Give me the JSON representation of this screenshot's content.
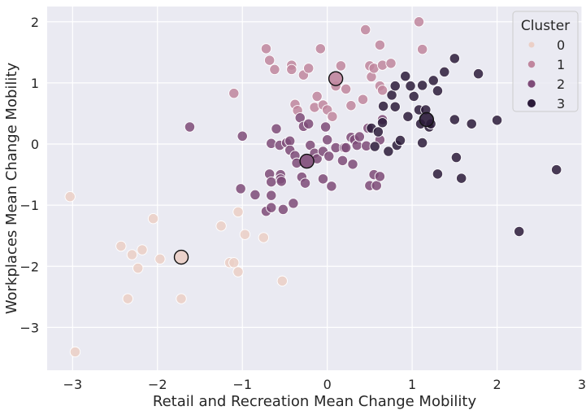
{
  "chart_data": {
    "type": "scatter",
    "xlabel": "Retail and Recreation Mean Change Mobility",
    "ylabel": "Workplaces Mean Change Mobility",
    "xlim": [
      -3.3,
      3.0
    ],
    "ylim": [
      -3.7,
      2.25
    ],
    "xticks": [
      -3,
      -2,
      -1,
      0,
      1,
      2,
      3
    ],
    "yticks": [
      -3,
      -2,
      -1,
      0,
      1,
      2
    ],
    "xtick_labels": [
      "−3",
      "−2",
      "−1",
      "0",
      "1",
      "2",
      "3"
    ],
    "ytick_labels": [
      "−3",
      "−2",
      "−1",
      "0",
      "1",
      "2"
    ],
    "grid": true,
    "legend": {
      "title": "Cluster",
      "placement": "top-right",
      "entries": [
        "0",
        "1",
        "2",
        "3"
      ]
    },
    "colors": {
      "0": "#ebcfc6",
      "1": "#c0869e",
      "2": "#7e4b78",
      "3": "#2b1b3a",
      "background": "#eaeaf2",
      "grid": "#ffffff"
    },
    "series": [
      {
        "name": "0",
        "points": [
          [
            -3.03,
            -0.86
          ],
          [
            -2.97,
            -3.4
          ],
          [
            -2.43,
            -1.67
          ],
          [
            -2.35,
            -2.53
          ],
          [
            -2.3,
            -1.81
          ],
          [
            -2.23,
            -2.03
          ],
          [
            -2.18,
            -1.73
          ],
          [
            -2.05,
            -1.22
          ],
          [
            -1.97,
            -1.88
          ],
          [
            -1.72,
            -2.53
          ],
          [
            -1.25,
            -1.34
          ],
          [
            -1.15,
            -1.94
          ],
          [
            -1.1,
            -1.94
          ],
          [
            -1.05,
            -2.09
          ],
          [
            -1.05,
            -1.11
          ],
          [
            -0.97,
            -1.48
          ],
          [
            -0.75,
            -1.53
          ],
          [
            -0.53,
            -2.24
          ]
        ]
      },
      {
        "name": "1",
        "points": [
          [
            -1.1,
            0.83
          ],
          [
            -0.72,
            1.56
          ],
          [
            -0.68,
            1.37
          ],
          [
            -0.62,
            1.22
          ],
          [
            -0.42,
            1.29
          ],
          [
            -0.42,
            1.22
          ],
          [
            -0.38,
            0.65
          ],
          [
            -0.35,
            0.55
          ],
          [
            -0.28,
            1.13
          ],
          [
            -0.22,
            1.24
          ],
          [
            -0.15,
            0.6
          ],
          [
            -0.12,
            0.78
          ],
          [
            -0.08,
            1.56
          ],
          [
            -0.05,
            0.64
          ],
          [
            0.0,
            0.56
          ],
          [
            0.06,
            0.45
          ],
          [
            0.1,
            0.95
          ],
          [
            0.16,
            1.28
          ],
          [
            0.22,
            0.9
          ],
          [
            0.28,
            0.63
          ],
          [
            0.42,
            0.73
          ],
          [
            0.45,
            1.87
          ],
          [
            0.5,
            1.28
          ],
          [
            0.52,
            1.1
          ],
          [
            0.55,
            1.24
          ],
          [
            0.62,
            1.62
          ],
          [
            0.62,
            0.95
          ],
          [
            0.65,
            0.88
          ],
          [
            0.65,
            1.29
          ],
          [
            0.75,
            1.32
          ],
          [
            1.08,
            2.0
          ],
          [
            1.12,
            1.55
          ]
        ]
      },
      {
        "name": "2",
        "points": [
          [
            -1.62,
            0.28
          ],
          [
            -1.0,
            0.13
          ],
          [
            -1.02,
            -0.73
          ],
          [
            -0.85,
            -0.83
          ],
          [
            -0.72,
            -1.1
          ],
          [
            -0.66,
            -1.04
          ],
          [
            -0.68,
            -0.49
          ],
          [
            -0.66,
            -0.62
          ],
          [
            -0.66,
            -0.84
          ],
          [
            -0.66,
            0.01
          ],
          [
            -0.6,
            0.25
          ],
          [
            -0.56,
            -0.02
          ],
          [
            -0.55,
            -0.5
          ],
          [
            -0.55,
            -0.57
          ],
          [
            -0.54,
            -0.61
          ],
          [
            -0.52,
            -1.07
          ],
          [
            -0.48,
            0.02
          ],
          [
            -0.44,
            0.05
          ],
          [
            -0.44,
            -0.1
          ],
          [
            -0.4,
            -0.97
          ],
          [
            -0.38,
            -0.19
          ],
          [
            -0.36,
            -0.31
          ],
          [
            -0.32,
            0.43
          ],
          [
            -0.3,
            -0.54
          ],
          [
            -0.28,
            0.29
          ],
          [
            -0.26,
            -0.64
          ],
          [
            -0.22,
            0.33
          ],
          [
            -0.2,
            -0.02
          ],
          [
            -0.15,
            -0.15
          ],
          [
            -0.12,
            -0.24
          ],
          [
            -0.05,
            -0.12
          ],
          [
            -0.05,
            -0.57
          ],
          [
            -0.02,
            0.28
          ],
          [
            0.0,
            0.07
          ],
          [
            0.02,
            -0.2
          ],
          [
            0.05,
            -0.69
          ],
          [
            0.1,
            -0.06
          ],
          [
            0.18,
            -0.27
          ],
          [
            0.2,
            -0.06
          ],
          [
            0.22,
            -0.06
          ],
          [
            0.28,
            0.11
          ],
          [
            0.3,
            -0.33
          ],
          [
            0.32,
            0.07
          ],
          [
            0.35,
            -0.02
          ],
          [
            0.38,
            0.12
          ],
          [
            0.46,
            -0.03
          ],
          [
            0.48,
            0.26
          ],
          [
            0.5,
            -0.68
          ],
          [
            0.55,
            -0.5
          ],
          [
            0.58,
            -0.68
          ],
          [
            0.62,
            -0.53
          ],
          [
            0.62,
            0.07
          ],
          [
            0.65,
            0.4
          ]
        ]
      },
      {
        "name": "3",
        "points": [
          [
            0.52,
            0.26
          ],
          [
            0.56,
            -0.04
          ],
          [
            0.6,
            0.2
          ],
          [
            0.65,
            0.35
          ],
          [
            0.66,
            0.62
          ],
          [
            0.72,
            -0.12
          ],
          [
            0.76,
            0.8
          ],
          [
            0.8,
            0.95
          ],
          [
            0.8,
            0.61
          ],
          [
            0.82,
            -0.02
          ],
          [
            0.86,
            0.06
          ],
          [
            0.92,
            1.11
          ],
          [
            0.95,
            0.45
          ],
          [
            0.98,
            0.95
          ],
          [
            1.02,
            0.78
          ],
          [
            1.08,
            0.56
          ],
          [
            1.1,
            0.33
          ],
          [
            1.12,
            0.96
          ],
          [
            1.12,
            0.02
          ],
          [
            1.16,
            0.56
          ],
          [
            1.2,
            0.28
          ],
          [
            1.22,
            0.33
          ],
          [
            1.25,
            1.04
          ],
          [
            1.3,
            -0.49
          ],
          [
            1.3,
            0.87
          ],
          [
            1.38,
            1.18
          ],
          [
            1.5,
            0.4
          ],
          [
            1.5,
            1.4
          ],
          [
            1.52,
            -0.22
          ],
          [
            1.58,
            -0.56
          ],
          [
            1.7,
            0.33
          ],
          [
            1.78,
            1.15
          ],
          [
            2.0,
            0.39
          ],
          [
            2.26,
            -1.43
          ],
          [
            2.7,
            -0.42
          ]
        ]
      }
    ],
    "centroids": [
      {
        "cluster": "0",
        "x": -1.72,
        "y": -1.85
      },
      {
        "cluster": "1",
        "x": 0.1,
        "y": 1.07
      },
      {
        "cluster": "2",
        "x": -0.24,
        "y": -0.28
      },
      {
        "cluster": "3",
        "x": 1.17,
        "y": 0.4
      }
    ]
  }
}
